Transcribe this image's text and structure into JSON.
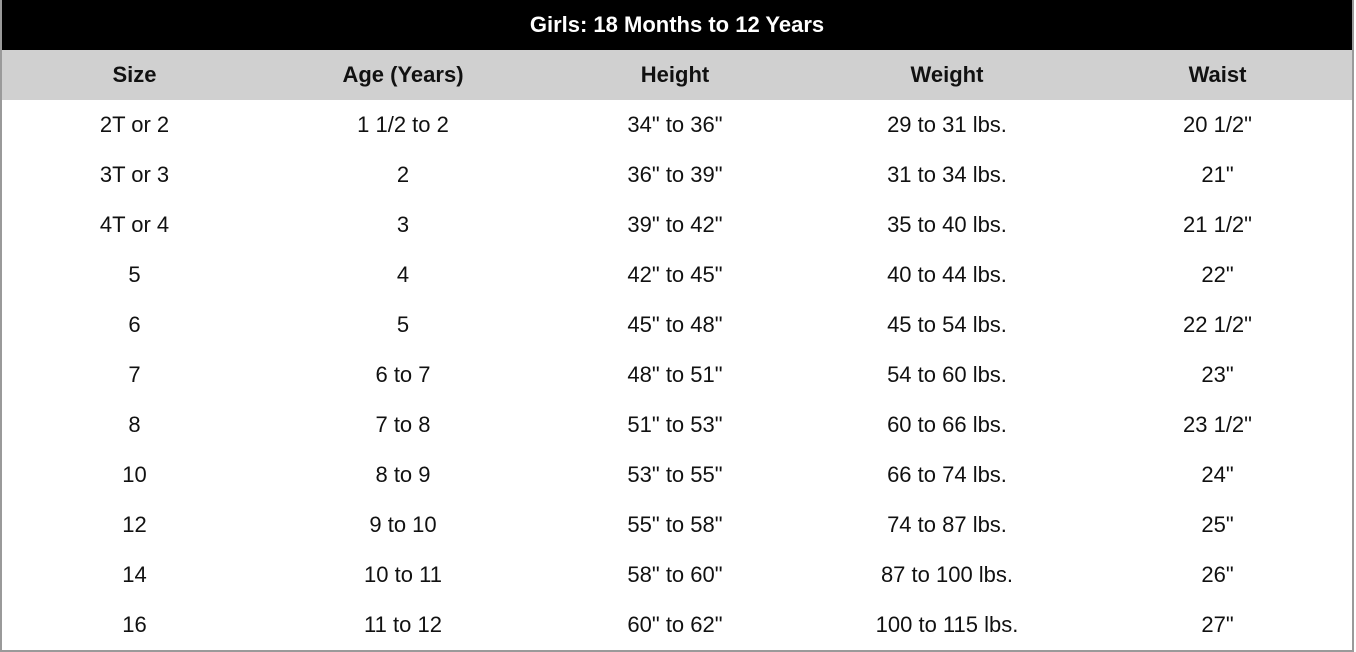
{
  "table": {
    "title": "Girls: 18 Months to 12 Years",
    "header": [
      "Size",
      "Age (Years)",
      "Height",
      "Weight",
      "Waist"
    ],
    "rows": [
      [
        "2T or 2",
        "1 1/2 to 2",
        "34\" to 36\"",
        "29 to 31 lbs.",
        "20 1/2\""
      ],
      [
        "3T or 3",
        "2",
        "36\" to 39\"",
        "31 to 34 lbs.",
        "21\""
      ],
      [
        "4T or 4",
        "3",
        "39\" to 42\"",
        "35 to 40 lbs.",
        "21 1/2\""
      ],
      [
        "5",
        "4",
        "42\" to 45\"",
        "40 to 44 lbs.",
        "22\""
      ],
      [
        "6",
        "5",
        "45\" to 48\"",
        "45 to 54 lbs.",
        "22 1/2\""
      ],
      [
        "7",
        "6 to 7",
        "48\" to 51\"",
        "54 to 60 lbs.",
        "23\""
      ],
      [
        "8",
        "7 to 8",
        "51\" to 53\"",
        "60 to 66 lbs.",
        "23 1/2\""
      ],
      [
        "10",
        "8 to 9",
        "53\" to 55\"",
        "66 to 74 lbs.",
        "24\""
      ],
      [
        "12",
        "9 to 10",
        "55\" to 58\"",
        "74 to 87 lbs.",
        "25\""
      ],
      [
        "14",
        "10 to 11",
        "58\" to 60\"",
        "87 to 100 lbs.",
        "26\""
      ],
      [
        "16",
        "11 to 12",
        "60\" to 62\"",
        "100 to 115 lbs.",
        "27\""
      ]
    ]
  }
}
